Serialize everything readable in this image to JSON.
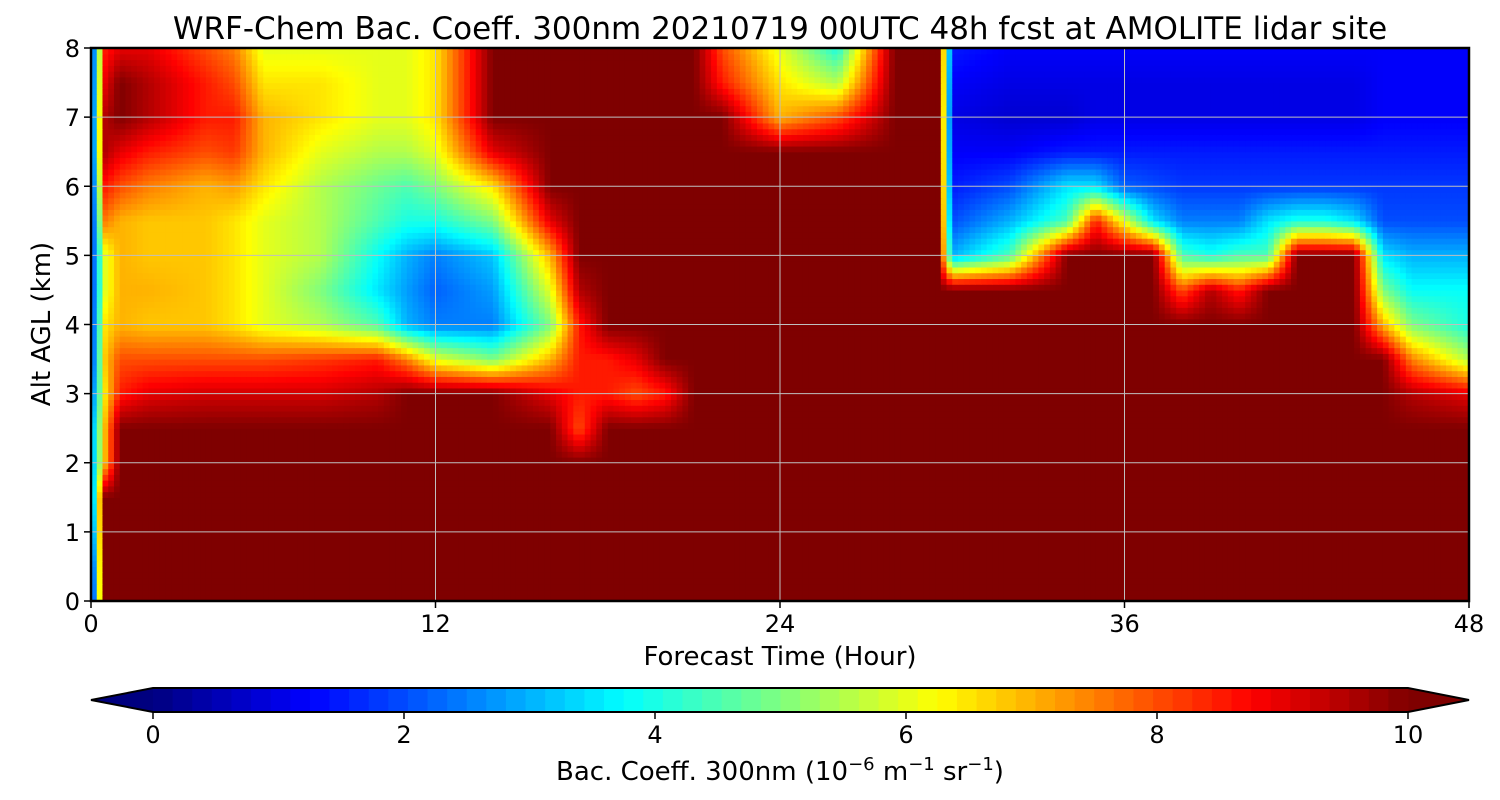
{
  "chart_data": {
    "type": "heatmap",
    "title": "WRF-Chem Bac. Coeff. 300nm  20210719 00UTC 48h fcst at AMOLITE lidar site",
    "xlabel": "Forecast Time (Hour)",
    "ylabel": "Alt AGL (km)",
    "xlim": [
      0,
      48
    ],
    "ylim": [
      0,
      8
    ],
    "x_ticks": [
      "0",
      "12",
      "24",
      "36",
      "48"
    ],
    "y_ticks": [
      "0",
      "1",
      "2",
      "3",
      "4",
      "5",
      "6",
      "7",
      "8"
    ],
    "grid": true,
    "colormap": "jet",
    "colorbar": {
      "label_main": "Bac. Coeff. 300nm  (10",
      "label_exp1": "−6",
      "label_mid": " m",
      "label_exp2": "−1",
      "label_mid2": " sr",
      "label_exp3": "−1",
      "label_end": ")",
      "range": [
        0,
        10
      ],
      "ticks": [
        "0",
        "2",
        "4",
        "6",
        "8",
        "10"
      ],
      "extend": "both",
      "orientation": "horizontal",
      "position": "bottom"
    },
    "x": [
      0,
      0.5,
      1,
      2,
      4,
      5,
      6,
      8,
      10,
      11,
      12,
      14,
      16,
      17,
      18,
      19,
      20,
      21,
      22,
      24,
      26,
      28,
      29.5,
      30,
      32,
      34,
      35,
      36,
      37,
      38,
      39,
      40,
      41,
      42,
      43,
      44,
      45,
      46,
      48
    ],
    "y": [
      0,
      0.5,
      1,
      1.5,
      2,
      2.5,
      3,
      3.5,
      4,
      4.5,
      5,
      5.5,
      6,
      6.5,
      7,
      7.5,
      8
    ],
    "units": "1e-6 m^-1 sr^-1",
    "values_note_saturated": "values >= 10 shown at the top color",
    "values": [
      [
        0.5,
        10,
        10,
        10,
        10,
        10,
        10,
        10,
        10,
        10,
        10,
        10,
        10,
        10,
        10,
        10,
        10,
        10,
        10,
        10,
        10,
        10,
        10,
        10,
        10,
        10,
        10,
        10,
        10,
        10,
        10,
        10,
        10,
        10,
        10,
        10,
        10,
        10,
        10
      ],
      [
        0.8,
        10,
        10,
        10,
        10,
        10,
        10,
        10,
        10,
        10,
        10,
        10,
        10,
        10,
        10,
        10,
        10,
        10,
        10,
        10,
        10,
        10,
        10,
        10,
        10,
        10,
        10,
        10,
        10,
        10,
        10,
        10,
        10,
        10,
        10,
        10,
        10,
        10,
        10
      ],
      [
        1.5,
        10,
        10,
        10,
        10,
        10,
        10,
        10,
        10,
        10,
        10,
        10,
        10,
        10,
        10,
        10,
        10,
        10,
        10,
        10,
        10,
        10,
        10,
        10,
        10,
        10,
        10,
        10,
        10,
        10,
        10,
        10,
        10,
        10,
        10,
        10,
        10,
        10,
        10
      ],
      [
        2.0,
        10,
        10,
        10,
        10,
        10,
        10,
        10,
        10,
        10,
        10,
        10,
        10,
        10,
        10,
        10,
        10,
        10,
        10,
        10,
        10,
        10,
        10,
        10,
        10,
        10,
        10,
        10,
        10,
        10,
        10,
        10,
        10,
        10,
        10,
        10,
        10,
        10,
        10
      ],
      [
        2.5,
        7.0,
        10,
        10,
        10,
        10,
        10,
        10,
        10,
        10,
        10,
        10,
        10,
        10,
        10,
        10,
        10,
        10,
        10,
        10,
        10,
        10,
        10,
        10,
        10,
        10,
        10,
        10,
        10,
        10,
        10,
        10,
        10,
        10,
        10,
        10,
        10,
        10,
        10
      ],
      [
        2.5,
        7.0,
        10,
        10,
        10,
        10,
        10,
        10,
        10,
        10,
        10,
        10,
        10,
        8.0,
        10,
        10,
        10,
        10,
        10,
        10,
        10,
        10,
        10,
        10,
        10,
        10,
        10,
        10,
        10,
        10,
        10,
        10,
        10,
        10,
        10,
        10,
        10,
        10,
        10
      ],
      [
        2.0,
        6.5,
        8.5,
        9.0,
        9.2,
        9.2,
        9.2,
        9.2,
        9.5,
        10,
        10,
        10,
        9.0,
        8.5,
        8.5,
        8.0,
        8.5,
        10,
        10,
        10,
        10,
        10,
        10,
        10,
        10,
        10,
        10,
        10,
        10,
        10,
        10,
        10,
        10,
        10,
        10,
        10,
        10,
        9.5,
        9.0
      ],
      [
        1.5,
        6.8,
        8.0,
        8.0,
        8.0,
        8.0,
        8.0,
        8.2,
        8.5,
        7.5,
        6.0,
        5.0,
        7.0,
        8.5,
        8.5,
        9.0,
        10,
        10,
        10,
        10,
        10,
        10,
        10,
        10,
        10,
        10,
        10,
        10,
        10,
        10,
        10,
        10,
        10,
        10,
        10,
        10,
        10,
        7.5,
        5.5
      ],
      [
        1.5,
        6.5,
        7.0,
        6.8,
        6.8,
        6.5,
        6.0,
        5.5,
        4.5,
        3.0,
        2.5,
        2.5,
        5.0,
        8.5,
        10,
        10,
        10,
        10,
        10,
        10,
        10,
        10,
        10,
        10,
        10,
        10,
        10,
        10,
        10,
        10,
        10,
        10,
        10,
        10,
        10,
        10,
        7.0,
        5.0,
        4.0
      ],
      [
        1.5,
        6.0,
        7.0,
        7.0,
        6.8,
        6.5,
        6.0,
        5.0,
        3.5,
        2.8,
        2.2,
        2.8,
        6.0,
        9.5,
        10,
        10,
        10,
        10,
        10,
        10,
        10,
        10,
        10,
        10,
        10,
        10,
        10,
        10,
        10,
        8.0,
        9.5,
        8.5,
        10,
        10,
        10,
        10,
        5.0,
        3.8,
        3.8
      ],
      [
        1.5,
        6.0,
        7.0,
        6.8,
        6.8,
        6.5,
        6.0,
        5.5,
        3.8,
        3.0,
        2.5,
        3.2,
        7.0,
        10,
        10,
        10,
        10,
        10,
        10,
        10,
        10,
        10,
        10,
        3.0,
        4.5,
        10,
        10,
        10,
        10,
        4.5,
        4.0,
        4.5,
        4.5,
        10,
        10,
        10,
        3.5,
        3.0,
        3.0
      ],
      [
        1.2,
        7.5,
        7.0,
        6.8,
        6.8,
        6.5,
        6.0,
        5.5,
        4.5,
        4.0,
        4.0,
        5.0,
        9.0,
        10,
        10,
        10,
        10,
        10,
        10,
        10,
        10,
        10,
        10,
        2.0,
        3.0,
        4.5,
        8.5,
        6.0,
        3.5,
        2.5,
        2.5,
        2.5,
        3.5,
        4.0,
        4.0,
        3.5,
        2.0,
        2.0,
        2.0
      ],
      [
        1.2,
        8.5,
        8.0,
        7.5,
        7.0,
        7.2,
        6.5,
        5.5,
        4.8,
        4.5,
        5.0,
        6.5,
        10,
        10,
        10,
        10,
        10,
        10,
        10,
        10,
        10,
        10,
        10,
        1.5,
        2.0,
        3.5,
        3.5,
        2.2,
        2.0,
        1.8,
        1.8,
        1.8,
        1.8,
        1.8,
        1.8,
        1.8,
        1.8,
        1.8,
        1.8
      ],
      [
        1.2,
        9.5,
        9.0,
        8.5,
        8.0,
        8.2,
        7.0,
        6.0,
        5.5,
        5.5,
        6.0,
        9.0,
        10,
        10,
        10,
        10,
        10,
        10,
        10,
        10,
        10,
        10,
        10,
        1.2,
        1.2,
        1.5,
        1.5,
        1.5,
        1.5,
        1.5,
        1.5,
        1.5,
        1.5,
        1.5,
        1.5,
        1.5,
        1.5,
        1.5,
        1.5
      ],
      [
        1.2,
        9.5,
        10,
        9.5,
        8.5,
        8.5,
        7.0,
        6.5,
        6.0,
        6.0,
        6.5,
        10,
        10,
        10,
        10,
        10,
        10,
        10,
        10,
        7.0,
        8.0,
        10,
        10,
        1.0,
        0.8,
        0.8,
        1.0,
        1.0,
        1.0,
        1.0,
        1.0,
        1.0,
        1.0,
        1.0,
        1.0,
        1.0,
        1.2,
        1.2,
        1.2
      ],
      [
        1.2,
        9.0,
        10,
        9.5,
        8.5,
        8.0,
        6.5,
        6.5,
        6.0,
        6.0,
        6.5,
        10,
        10,
        10,
        10,
        10,
        10,
        10,
        8.5,
        6.5,
        5.5,
        10,
        10,
        1.2,
        1.0,
        1.0,
        1.0,
        1.0,
        1.0,
        1.0,
        1.0,
        1.0,
        1.0,
        1.0,
        1.0,
        1.0,
        1.2,
        1.2,
        1.2
      ],
      [
        1.2,
        8.5,
        9.0,
        9.0,
        8.0,
        7.5,
        6.0,
        6.0,
        6.0,
        6.0,
        6.5,
        10,
        10,
        10,
        10,
        10,
        10,
        10,
        8.0,
        6.0,
        4.0,
        10,
        10,
        1.5,
        1.2,
        1.2,
        1.2,
        1.2,
        1.2,
        1.2,
        1.2,
        1.2,
        1.2,
        1.2,
        1.2,
        1.2,
        1.2,
        1.2,
        1.2
      ]
    ]
  },
  "style": {
    "colormap_stops": [
      "#00007f",
      "#0000ff",
      "#007fff",
      "#00ffff",
      "#7fff7f",
      "#ffff00",
      "#ff7f00",
      "#ff0000",
      "#7f0000"
    ],
    "grid_color": "#bfbfbf",
    "axis_color": "#000000"
  }
}
